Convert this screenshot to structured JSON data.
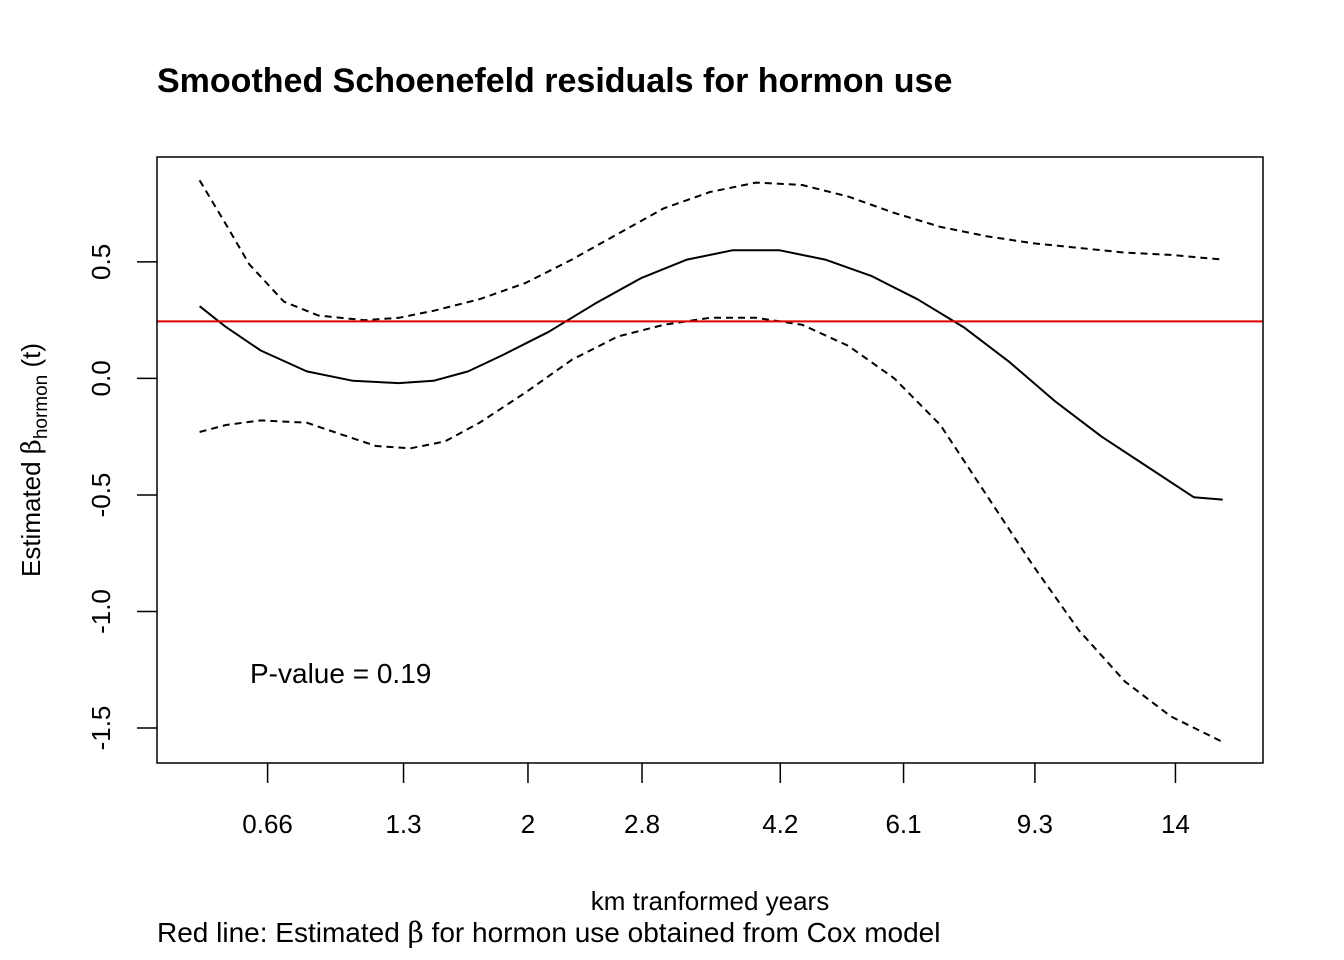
{
  "chart_data": {
    "type": "line",
    "title": "Smoothed Schoenefeld residuals for hormon use",
    "xlabel": "km tranformed years",
    "ylabel": {
      "prefix": "Estimated ",
      "symbol": "β",
      "subscript": "hormon",
      "suffix": " (t)"
    },
    "subtitle": {
      "before": "Red line: Estimated ",
      "symbol": "β",
      "after": " for hormon use obtained from Cox model"
    },
    "annotation": "P-value = 0.19",
    "xlim": [
      0.04,
      1.0
    ],
    "ylim": [
      -1.65,
      0.95
    ],
    "x_ticks": [
      {
        "pos": 0.136,
        "label": "0.66"
      },
      {
        "pos": 0.254,
        "label": "1.3"
      },
      {
        "pos": 0.362,
        "label": "2"
      },
      {
        "pos": 0.461,
        "label": "2.8"
      },
      {
        "pos": 0.581,
        "label": "4.2"
      },
      {
        "pos": 0.688,
        "label": "6.1"
      },
      {
        "pos": 0.802,
        "label": "9.3"
      },
      {
        "pos": 0.924,
        "label": "14"
      }
    ],
    "y_ticks": [
      {
        "value": 0.5,
        "label": "0.5"
      },
      {
        "value": 0.0,
        "label": "0.0"
      },
      {
        "value": -0.5,
        "label": "-0.5"
      },
      {
        "value": -1.0,
        "label": "-1.0"
      },
      {
        "value": -1.5,
        "label": "-1.5"
      }
    ],
    "hline": {
      "y": 0.245,
      "color": "#dd0000"
    },
    "series": [
      {
        "name": "smoothed estimate",
        "style": "solid",
        "color": "#000000",
        "x": [
          0.077,
          0.1,
          0.13,
          0.17,
          0.21,
          0.25,
          0.28,
          0.31,
          0.34,
          0.38,
          0.42,
          0.46,
          0.5,
          0.54,
          0.58,
          0.62,
          0.66,
          0.7,
          0.74,
          0.78,
          0.82,
          0.86,
          0.9,
          0.94,
          0.965
        ],
        "y": [
          0.31,
          0.22,
          0.12,
          0.03,
          -0.01,
          -0.02,
          -0.01,
          0.03,
          0.1,
          0.2,
          0.32,
          0.43,
          0.51,
          0.55,
          0.55,
          0.51,
          0.44,
          0.34,
          0.22,
          0.07,
          -0.1,
          -0.25,
          -0.38,
          -0.51,
          -0.52
        ]
      },
      {
        "name": "upper confidence band",
        "style": "dashed",
        "color": "#000000",
        "x": [
          0.077,
          0.1,
          0.12,
          0.15,
          0.18,
          0.22,
          0.25,
          0.28,
          0.32,
          0.36,
          0.4,
          0.44,
          0.48,
          0.52,
          0.56,
          0.6,
          0.64,
          0.68,
          0.72,
          0.76,
          0.8,
          0.84,
          0.88,
          0.92,
          0.965
        ],
        "y": [
          0.85,
          0.66,
          0.49,
          0.33,
          0.27,
          0.25,
          0.26,
          0.29,
          0.34,
          0.41,
          0.51,
          0.62,
          0.73,
          0.8,
          0.84,
          0.83,
          0.78,
          0.71,
          0.65,
          0.61,
          0.58,
          0.56,
          0.54,
          0.53,
          0.51
        ]
      },
      {
        "name": "lower confidence band",
        "style": "dashed",
        "color": "#000000",
        "x": [
          0.077,
          0.1,
          0.13,
          0.17,
          0.2,
          0.23,
          0.26,
          0.29,
          0.32,
          0.36,
          0.4,
          0.44,
          0.48,
          0.52,
          0.56,
          0.6,
          0.64,
          0.68,
          0.72,
          0.76,
          0.8,
          0.84,
          0.88,
          0.92,
          0.965
        ],
        "y": [
          -0.23,
          -0.2,
          -0.18,
          -0.19,
          -0.24,
          -0.29,
          -0.3,
          -0.27,
          -0.19,
          -0.06,
          0.08,
          0.18,
          0.23,
          0.26,
          0.26,
          0.23,
          0.14,
          0.0,
          -0.2,
          -0.5,
          -0.8,
          -1.08,
          -1.3,
          -1.45,
          -1.56
        ]
      }
    ]
  }
}
